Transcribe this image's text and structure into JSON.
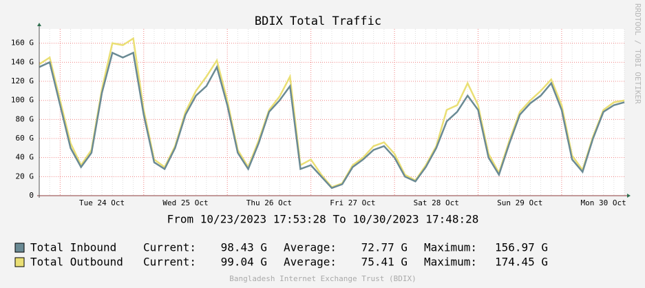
{
  "chart_data": {
    "type": "line",
    "title": "BDIX Total Traffic",
    "side_label": "RRDTOOL / TOBI OETIKER",
    "period": "From 10/23/2023 17:53:28 To 10/30/2023 17:48:28",
    "footer": "Bangladesh Internet Exchange Trust (BDIX)",
    "categories": [
      null,
      null,
      null,
      null,
      null,
      null,
      "Tue 24 Oct",
      null,
      null,
      null,
      null,
      null,
      null,
      null,
      "Wed 25 Oct",
      null,
      null,
      null,
      null,
      null,
      null,
      null,
      "Thu 26 Oct",
      null,
      null,
      null,
      null,
      null,
      null,
      null,
      "Fri 27 Oct",
      null,
      null,
      null,
      null,
      null,
      null,
      null,
      "Sat 28 Oct",
      null,
      null,
      null,
      null,
      null,
      null,
      null,
      "Sun 29 Oct",
      null,
      null,
      null,
      null,
      null,
      null,
      null,
      "Mon 30 Oct",
      null,
      null
    ],
    "series": [
      {
        "name": "Total Inbound",
        "color": "#6a8a94",
        "values": [
          135,
          140,
          95,
          50,
          30,
          45,
          108,
          150,
          145,
          150,
          85,
          35,
          28,
          50,
          85,
          105,
          115,
          135,
          95,
          45,
          28,
          55,
          88,
          100,
          115,
          28,
          32,
          20,
          8,
          12,
          30,
          38,
          48,
          52,
          40,
          20,
          15,
          30,
          50,
          78,
          88,
          105,
          90,
          40,
          22,
          55,
          85,
          97,
          105,
          118,
          90,
          38,
          25,
          60,
          88,
          95,
          98
        ]
      },
      {
        "name": "Total Outbound",
        "color": "#eadf74",
        "values": [
          138,
          145,
          100,
          55,
          32,
          48,
          112,
          160,
          158,
          165,
          90,
          38,
          30,
          52,
          88,
          110,
          125,
          142,
          100,
          48,
          30,
          58,
          90,
          104,
          125,
          32,
          38,
          22,
          9,
          13,
          32,
          40,
          52,
          56,
          44,
          22,
          16,
          32,
          52,
          90,
          95,
          118,
          95,
          44,
          24,
          58,
          88,
          100,
          110,
          122,
          95,
          42,
          27,
          62,
          90,
          98,
          100
        ]
      }
    ],
    "ylim": [
      0,
      175
    ],
    "yticks": [
      0,
      {
        "value": 20,
        "label": "20 G"
      },
      {
        "value": 40,
        "label": "40 G"
      },
      {
        "value": 60,
        "label": "60 G"
      },
      {
        "value": 80,
        "label": "80 G"
      },
      {
        "value": 100,
        "label": "100 G"
      },
      {
        "value": 120,
        "label": "120 G"
      },
      {
        "value": 140,
        "label": "140 G"
      },
      {
        "value": 160,
        "label": "160 G"
      }
    ],
    "grid": true,
    "stat_labels": [
      "Current:",
      "Average:",
      "Maximum:"
    ],
    "stats": [
      [
        "98.43 G",
        "72.77 G",
        "156.97 G"
      ],
      [
        "99.04 G",
        "75.41 G",
        "174.45 G"
      ]
    ]
  }
}
